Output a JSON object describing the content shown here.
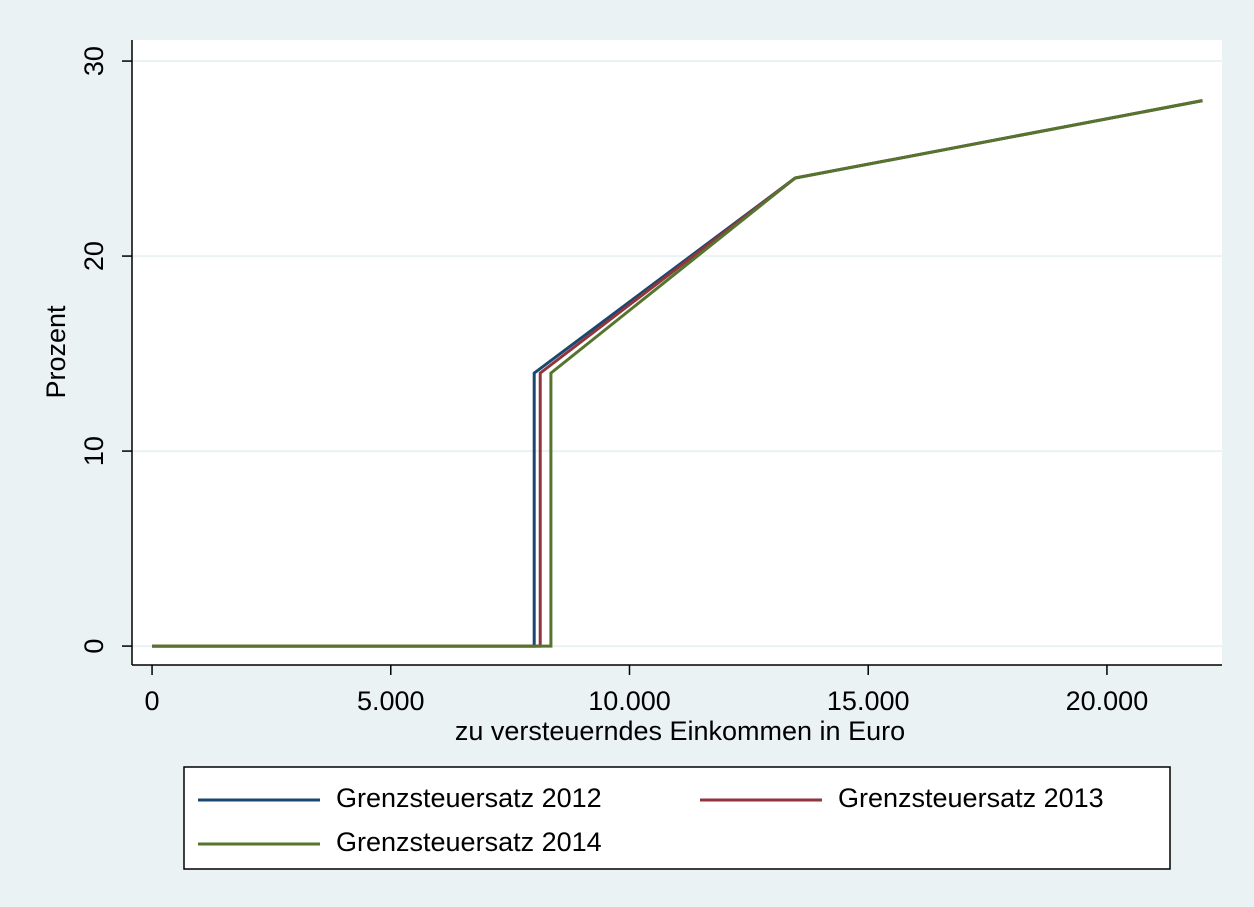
{
  "chart_data": {
    "type": "line",
    "x_label": "zu versteuerndes Einkommen in Euro",
    "y_label": "Prozent",
    "series": [
      {
        "name": "Grenzsteuersatz 2012",
        "color": "#1a476f",
        "x": [
          0,
          8004,
          8004,
          13469,
          22000
        ],
        "values": [
          0,
          0,
          14,
          24,
          27.97
        ]
      },
      {
        "name": "Grenzsteuersatz 2013",
        "color": "#90353b",
        "x": [
          0,
          8130,
          8130,
          13469,
          22000
        ],
        "values": [
          0,
          0,
          14,
          24,
          27.97
        ]
      },
      {
        "name": "Grenzsteuersatz 2014",
        "color": "#55752f",
        "x": [
          0,
          8354,
          8354,
          13469,
          22000
        ],
        "values": [
          0,
          0,
          14,
          24,
          27.97
        ]
      }
    ],
    "xlim": [
      -420,
      22410
    ],
    "ylim": [
      -0.97,
      31.08
    ],
    "xticks": [
      0,
      {
        "value": 5000,
        "label": "5.000"
      },
      {
        "value": 10000,
        "label": "10.000"
      },
      {
        "value": 15000,
        "label": "15.000"
      },
      {
        "value": 20000,
        "label": "20.000"
      }
    ],
    "yticks": [
      0,
      10,
      20,
      30
    ],
    "grid": true,
    "legend": "bottom"
  }
}
